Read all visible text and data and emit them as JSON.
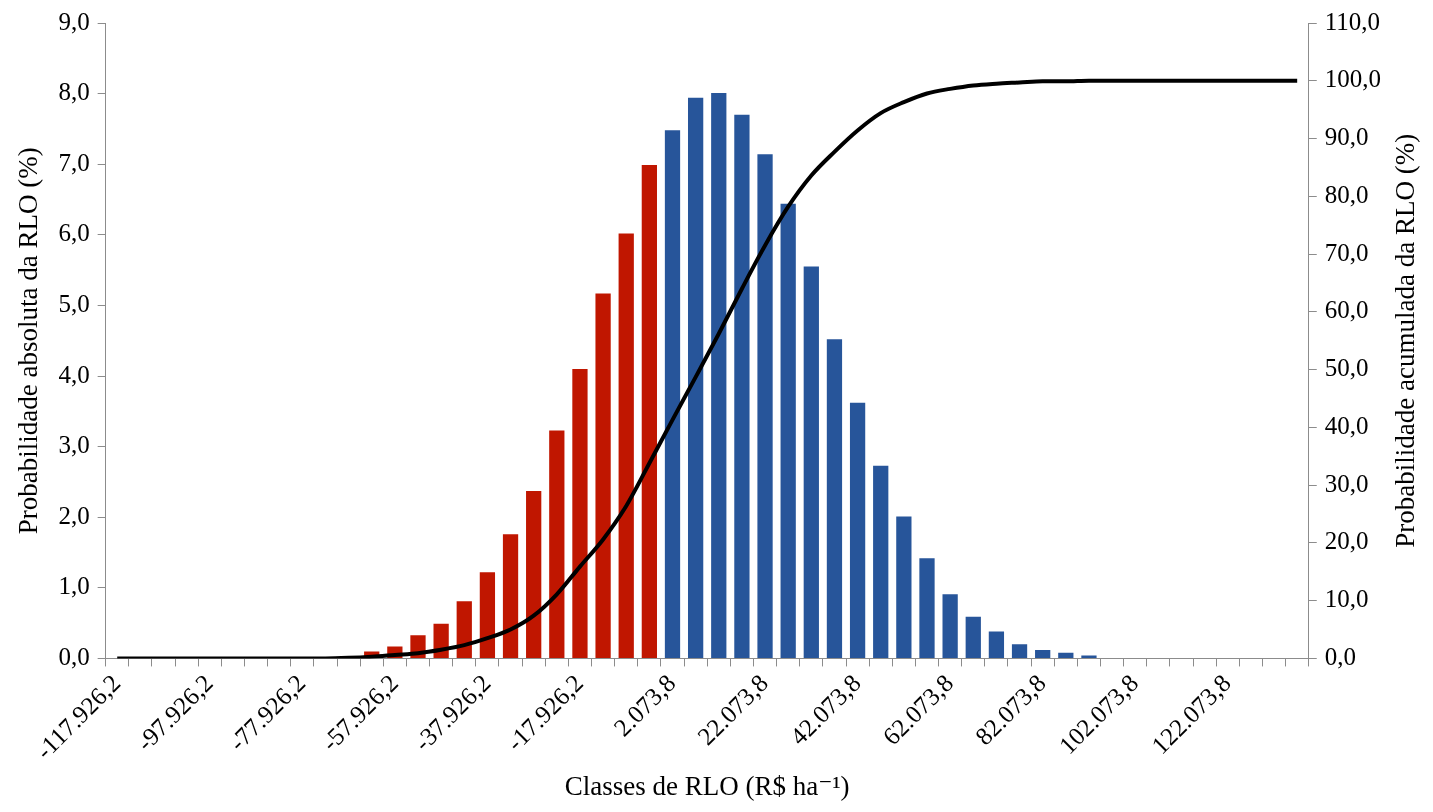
{
  "chart_data": {
    "type": "bar",
    "xlabel": "Classes de RLO (R$ ha⁻¹)",
    "ylabel": "Probabilidade absoluta da RLO (%)",
    "y2label": "Probabilidade acumulada da RLO (%)",
    "categories": [
      "-117.926,2",
      null,
      null,
      null,
      "-97.926,2",
      null,
      null,
      null,
      "-77.926,2",
      null,
      null,
      null,
      "-57.926,2",
      null,
      null,
      null,
      "-37.926,2",
      null,
      null,
      null,
      "-17.926,2",
      null,
      null,
      null,
      "2.073,8",
      null,
      null,
      null,
      "22.073,8",
      null,
      null,
      null,
      "42.073,8",
      null,
      null,
      null,
      "62.073,8",
      null,
      null,
      null,
      "82.073,8",
      null,
      null,
      null,
      "102.073,8",
      null,
      null,
      null,
      "122.073,8",
      null,
      null,
      null
    ],
    "series": [
      {
        "colors": [
          "#c01600",
          "#c01600",
          "#c01600",
          "#c01600",
          "#c01600",
          "#c01600",
          "#c01600",
          "#c01600",
          "#c01600",
          "#c01600",
          "#c01600",
          "#c01600",
          "#c01600",
          "#c01600",
          "#c01600",
          "#c01600",
          "#c01600",
          "#c01600",
          "#c01600",
          "#c01600",
          "#c01600",
          "#c01600",
          "#c01600",
          "#c01600",
          "#27559a",
          "#27559a",
          "#27559a",
          "#27559a",
          "#27559a",
          "#27559a",
          "#27559a",
          "#27559a",
          "#27559a",
          "#27559a",
          "#27559a",
          "#27559a",
          "#27559a",
          "#27559a",
          "#27559a",
          "#27559a",
          "#27559a",
          "#27559a",
          "#27559a",
          "#27559a",
          "#27559a",
          "#27559a",
          "#27559a",
          "#27559a",
          "#27559a",
          "#27559a",
          "#27559a",
          "#27559a"
        ],
        "values": [
          0,
          0,
          0,
          0,
          0,
          0,
          0,
          0,
          0,
          0,
          0,
          0.1,
          0.17,
          0.33,
          0.49,
          0.81,
          1.22,
          1.76,
          2.37,
          3.23,
          4.1,
          5.17,
          6.02,
          6.99,
          7.48,
          7.94,
          8.01,
          7.7,
          7.14,
          6.44,
          5.55,
          4.52,
          3.62,
          2.73,
          2.01,
          1.42,
          0.91,
          0.59,
          0.38,
          0.2,
          0.12,
          0.08,
          0.04,
          0,
          0,
          0,
          0,
          0,
          0,
          0,
          0,
          0
        ]
      },
      {
        "type": "line",
        "axis": "y2",
        "color": "#000000",
        "values": [
          0,
          0,
          0,
          0,
          0,
          0,
          0,
          0,
          0,
          0,
          0.1,
          0.3,
          0.6,
          0.9,
          1.5,
          2.3,
          3.5,
          5.0,
          7.4,
          11.1,
          15.9,
          20.6,
          26.4,
          33.8,
          41.3,
          48.7,
          56.2,
          64.0,
          71.5,
          78.2,
          83.6,
          87.7,
          91.4,
          94.4,
          96.3,
          97.8,
          98.6,
          99.2,
          99.5,
          99.7,
          99.9,
          99.9,
          100,
          100,
          100,
          100,
          100,
          100,
          100,
          100,
          100,
          100
        ]
      }
    ],
    "ylim": [
      0,
      9
    ],
    "yticks": [
      {
        "value": 0,
        "label": "0,0"
      },
      {
        "value": 1,
        "label": "1,0"
      },
      {
        "value": 2,
        "label": "2,0"
      },
      {
        "value": 3,
        "label": "3,0"
      },
      {
        "value": 4,
        "label": "4,0"
      },
      {
        "value": 5,
        "label": "5,0"
      },
      {
        "value": 6,
        "label": "6,0"
      },
      {
        "value": 7,
        "label": "7,0"
      },
      {
        "value": 8,
        "label": "8,0"
      },
      {
        "value": 9,
        "label": "9,0"
      }
    ],
    "y2lim": [
      0,
      110
    ],
    "y2ticks": [
      {
        "value": 0,
        "label": "0,0"
      },
      {
        "value": 10,
        "label": "10,0"
      },
      {
        "value": 20,
        "label": "20,0"
      },
      {
        "value": 30,
        "label": "30,0"
      },
      {
        "value": 40,
        "label": "40,0"
      },
      {
        "value": 50,
        "label": "50,0"
      },
      {
        "value": 60,
        "label": "60,0"
      },
      {
        "value": 70,
        "label": "70,0"
      },
      {
        "value": 80,
        "label": "80,0"
      },
      {
        "value": 90,
        "label": "90,0"
      },
      {
        "value": 100,
        "label": "100,0"
      },
      {
        "value": 110,
        "label": "110,0"
      }
    ],
    "marker": "none",
    "legend": false
  }
}
